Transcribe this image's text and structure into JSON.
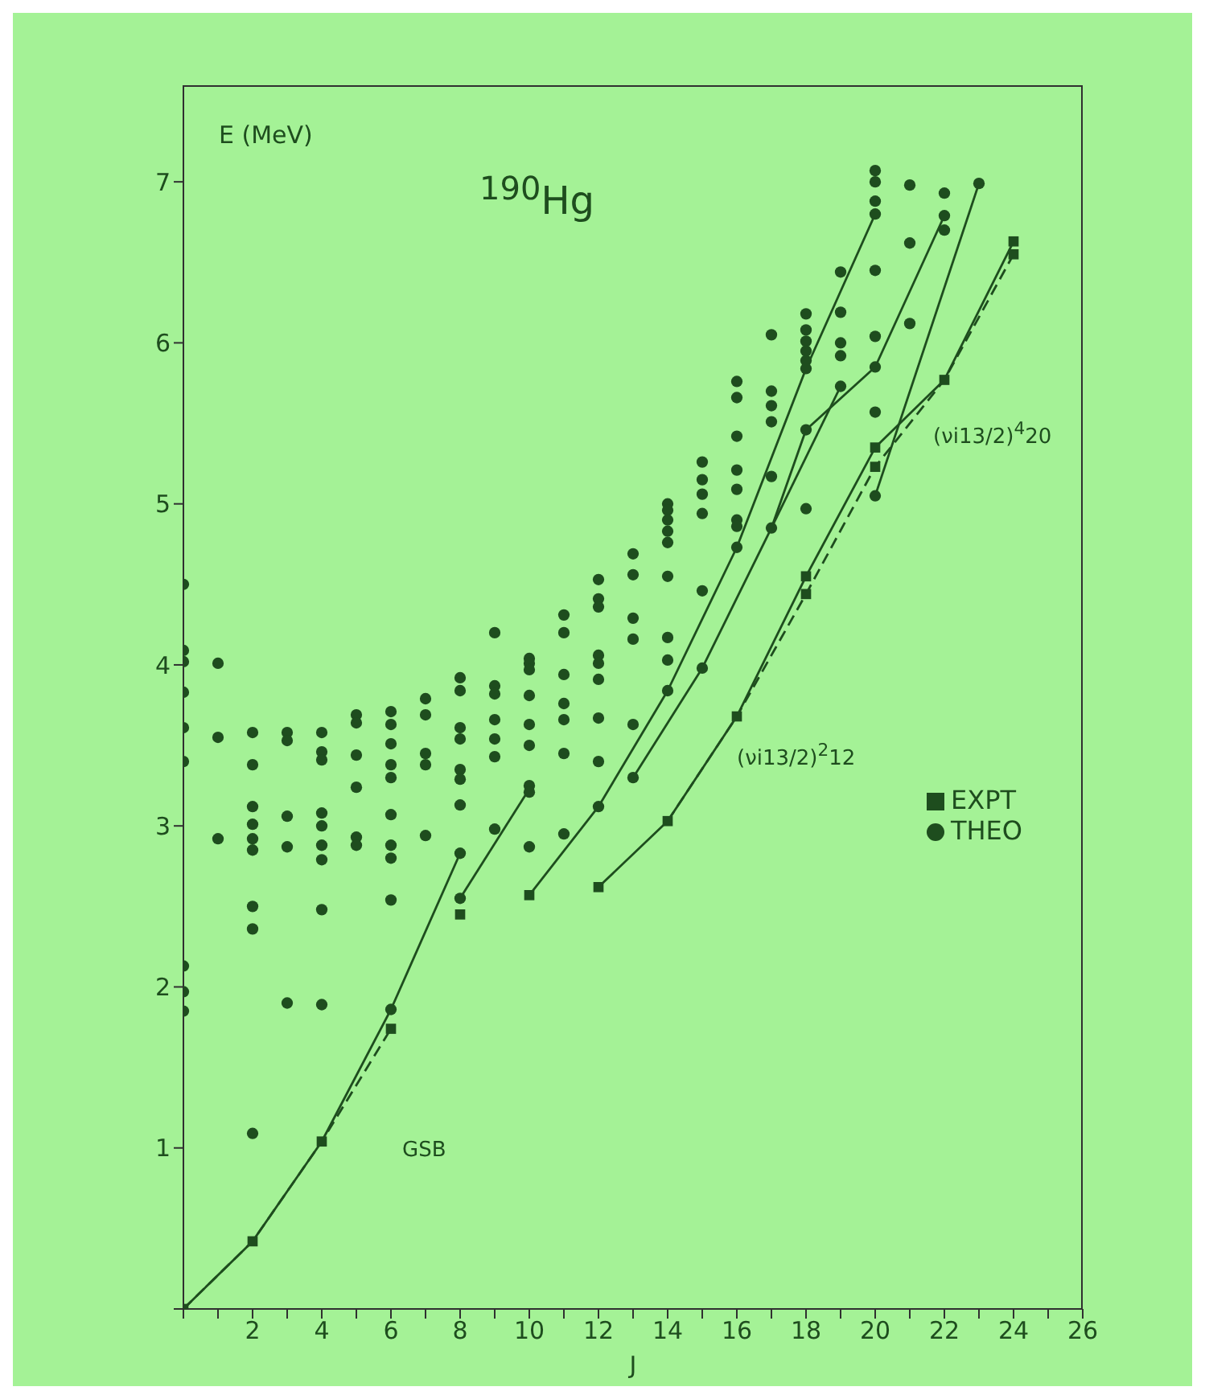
{
  "chart_data": {
    "type": "scatter",
    "title": "$^{190}$Hg",
    "xlabel": "J",
    "ylabel": "E (MeV)",
    "xlim": [
      0,
      26
    ],
    "ylim": [
      0,
      7.6
    ],
    "xticks": [
      {
        "value": 0,
        "label": null
      },
      {
        "value": 1,
        "label": null
      },
      2,
      {
        "value": 3,
        "label": null
      },
      4,
      {
        "value": 5,
        "label": null
      },
      6,
      {
        "value": 7,
        "label": null
      },
      8,
      {
        "value": 9,
        "label": null
      },
      10,
      {
        "value": 11,
        "label": null
      },
      12,
      {
        "value": 13,
        "label": null
      },
      14,
      {
        "value": 15,
        "label": null
      },
      16,
      {
        "value": 17,
        "label": null
      },
      18,
      {
        "value": 19,
        "label": null
      },
      20,
      {
        "value": 21,
        "label": null
      },
      22,
      {
        "value": 23,
        "label": null
      },
      24,
      {
        "value": 25,
        "label": null
      },
      26
    ],
    "yticks": [
      {
        "value": 0,
        "label": null
      },
      1,
      2,
      3,
      4,
      5,
      6,
      7
    ],
    "grid": false,
    "legend": "right",
    "annotations": [
      "GSB",
      "(νi13/2)$^{2}$12",
      "(νi13/2)$^{4}$20"
    ],
    "series": [
      {
        "type": "line",
        "color": "#1e4d1e",
        "marker": "none",
        "line_style": "solid",
        "x": [
          0,
          2,
          4,
          6,
          8
        ],
        "values": [
          0,
          0.42,
          1.04,
          1.86,
          2.83
        ]
      },
      {
        "type": "line",
        "color": "#1e4d1e",
        "marker": "none",
        "line_style": "solid",
        "x": [
          8,
          10
        ],
        "values": [
          2.55,
          3.23
        ]
      },
      {
        "type": "line",
        "color": "#1e4d1e",
        "marker": "none",
        "line_style": "solid",
        "x": [
          10,
          12,
          14,
          16,
          18,
          20
        ],
        "values": [
          2.57,
          3.12,
          3.84,
          4.73,
          5.84,
          6.8
        ]
      },
      {
        "type": "line",
        "color": "#1e4d1e",
        "marker": "none",
        "line_style": "solid",
        "x": [
          13,
          15,
          17,
          18,
          20,
          22
        ],
        "values": [
          3.3,
          3.98,
          4.85,
          5.46,
          5.85,
          6.79
        ]
      },
      {
        "type": "line",
        "color": "#1e4d1e",
        "marker": "none",
        "line_style": "solid",
        "x": [
          12,
          14,
          16,
          18,
          20,
          22,
          24
        ],
        "values": [
          2.62,
          3.03,
          3.68,
          4.55,
          5.35,
          5.77,
          6.63
        ]
      },
      {
        "type": "line",
        "color": "#1e4d1e",
        "marker": "none",
        "line_style": "solid",
        "x": [
          20,
          23
        ],
        "values": [
          5.05,
          6.99
        ]
      },
      {
        "type": "line",
        "color": "#1e4d1e",
        "marker": "none",
        "line_style": "solid",
        "x": [
          17,
          19
        ],
        "values": [
          4.85,
          5.73
        ]
      },
      {
        "type": "line",
        "color": "#1e4d1e",
        "marker": "none",
        "line_style": "dashed",
        "x": [
          0,
          2,
          4,
          6
        ],
        "values": [
          0,
          0.42,
          1.04,
          1.74
        ]
      },
      {
        "type": "line",
        "color": "#1e4d1e",
        "marker": "none",
        "line_style": "dashed",
        "x": [
          14,
          16,
          18,
          20,
          22,
          24
        ],
        "values": [
          3.03,
          3.68,
          4.44,
          5.23,
          5.77,
          6.55
        ]
      },
      {
        "name": "EXPT",
        "color": "#1e4d1e",
        "marker": "square",
        "x": [
          0,
          2,
          4,
          6,
          8,
          10,
          12,
          14,
          16,
          18,
          18,
          20,
          20,
          22,
          24,
          24
        ],
        "values": [
          0,
          0.42,
          1.04,
          1.74,
          2.45,
          2.57,
          2.62,
          3.03,
          3.68,
          4.55,
          4.44,
          5.35,
          5.23,
          5.77,
          6.63,
          6.55
        ]
      },
      {
        "name": "THEO",
        "color": "#1e4d1e",
        "marker": "circle",
        "x": [
          0,
          0,
          0,
          0,
          0,
          0,
          0,
          0,
          0,
          1,
          1,
          1,
          2,
          2,
          2,
          2,
          2,
          2,
          2,
          2,
          2,
          3,
          3,
          3,
          3,
          3,
          4,
          4,
          4,
          4,
          4,
          4,
          4,
          4,
          4,
          5,
          5,
          5,
          5,
          5,
          5,
          6,
          6,
          6,
          6,
          6,
          6,
          6,
          6,
          6,
          6,
          7,
          7,
          7,
          7,
          7,
          8,
          8,
          8,
          8,
          8,
          8,
          8,
          8,
          8,
          9,
          9,
          9,
          9,
          9,
          9,
          9,
          10,
          10,
          10,
          10,
          10,
          10,
          10,
          10,
          10,
          11,
          11,
          11,
          11,
          11,
          11,
          11,
          12,
          12,
          12,
          12,
          12,
          12,
          12,
          12,
          12,
          13,
          13,
          13,
          13,
          13,
          13,
          14,
          14,
          14,
          14,
          14,
          14,
          14,
          14,
          14,
          15,
          15,
          15,
          15,
          15,
          15,
          16,
          16,
          16,
          16,
          16,
          16,
          16,
          16,
          17,
          17,
          17,
          17,
          17,
          17,
          18,
          18,
          18,
          18,
          18,
          18,
          18,
          18,
          19,
          19,
          19,
          19,
          19,
          20,
          20,
          20,
          20,
          20,
          20,
          20,
          20,
          20,
          21,
          21,
          21,
          22,
          22,
          22,
          23
        ],
        "values": [
          4.5,
          4.09,
          4.02,
          3.83,
          3.61,
          3.4,
          2.13,
          1.97,
          1.85,
          4.01,
          3.55,
          2.92,
          3.58,
          3.38,
          3.12,
          3.01,
          2.92,
          2.85,
          2.5,
          2.36,
          1.09,
          3.58,
          3.53,
          3.06,
          2.87,
          1.9,
          3.58,
          3.46,
          3.41,
          3.08,
          3.0,
          2.88,
          2.79,
          2.48,
          1.89,
          3.69,
          3.64,
          3.44,
          3.24,
          2.93,
          2.88,
          3.71,
          3.63,
          3.51,
          3.38,
          3.3,
          3.07,
          2.88,
          2.8,
          2.54,
          1.86,
          3.79,
          3.69,
          3.45,
          3.38,
          2.94,
          3.92,
          3.84,
          3.61,
          3.54,
          3.35,
          3.29,
          3.13,
          2.83,
          2.55,
          4.2,
          3.87,
          3.82,
          3.66,
          3.54,
          3.43,
          2.98,
          4.04,
          4.01,
          3.97,
          3.81,
          3.63,
          3.5,
          3.25,
          3.21,
          2.87,
          4.31,
          4.2,
          3.94,
          3.76,
          3.66,
          3.45,
          2.95,
          4.53,
          4.41,
          4.36,
          4.06,
          4.01,
          3.91,
          3.67,
          3.4,
          3.12,
          4.69,
          4.56,
          4.29,
          4.16,
          3.63,
          3.3,
          5.0,
          4.96,
          4.9,
          4.83,
          4.76,
          4.55,
          4.17,
          4.03,
          3.84,
          5.26,
          5.15,
          5.06,
          4.94,
          4.46,
          3.98,
          5.76,
          5.66,
          5.42,
          5.21,
          5.09,
          4.9,
          4.86,
          4.73,
          6.05,
          5.7,
          5.61,
          5.51,
          5.17,
          4.85,
          6.18,
          6.08,
          6.01,
          5.95,
          5.89,
          5.84,
          5.46,
          4.97,
          6.44,
          6.19,
          6.0,
          5.92,
          5.73,
          7.07,
          7.0,
          6.88,
          6.8,
          6.45,
          6.04,
          5.85,
          5.57,
          5.05,
          6.98,
          6.62,
          6.12,
          6.93,
          6.79,
          6.7,
          6.99
        ]
      }
    ]
  }
}
